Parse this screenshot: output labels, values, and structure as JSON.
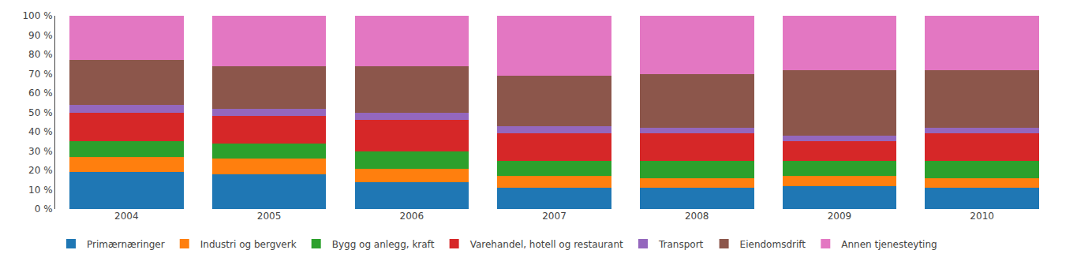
{
  "chart_data": {
    "type": "bar",
    "stacked": true,
    "categories": [
      "2004",
      "2005",
      "2006",
      "2007",
      "2008",
      "2009",
      "2010"
    ],
    "series": [
      {
        "name": "Primærnæringer",
        "values": [
          19,
          18,
          14,
          11,
          11,
          12,
          11
        ]
      },
      {
        "name": "Industri og bergverk",
        "values": [
          8,
          8,
          7,
          6,
          5,
          5,
          5
        ]
      },
      {
        "name": "Bygg og anlegg, kraft",
        "values": [
          8,
          8,
          9,
          8,
          9,
          8,
          9
        ]
      },
      {
        "name": "Varehandel, hotell og restaurant",
        "values": [
          15,
          14,
          16,
          14,
          14,
          10,
          14
        ]
      },
      {
        "name": "Transport",
        "values": [
          4,
          4,
          4,
          4,
          3,
          3,
          3
        ]
      },
      {
        "name": "Eiendomsdrift",
        "values": [
          23,
          22,
          24,
          26,
          28,
          34,
          30
        ]
      },
      {
        "name": "Annen tjenesteyting",
        "values": [
          23,
          26,
          26,
          31,
          30,
          28,
          28
        ]
      }
    ],
    "ylim": [
      0,
      100
    ],
    "yticks": [
      {
        "value": 0,
        "label": "0 %"
      },
      {
        "value": 10,
        "label": "10 %"
      },
      {
        "value": 20,
        "label": "20 %"
      },
      {
        "value": 30,
        "label": "30 %"
      },
      {
        "value": 40,
        "label": "40 %"
      },
      {
        "value": 50,
        "label": "50 %"
      },
      {
        "value": 60,
        "label": "60 %"
      },
      {
        "value": 70,
        "label": "70 %"
      },
      {
        "value": 80,
        "label": "80 %"
      },
      {
        "value": 90,
        "label": "90 %"
      },
      {
        "value": 100,
        "label": "100 %"
      }
    ],
    "grid": false,
    "legend": "bottom"
  }
}
